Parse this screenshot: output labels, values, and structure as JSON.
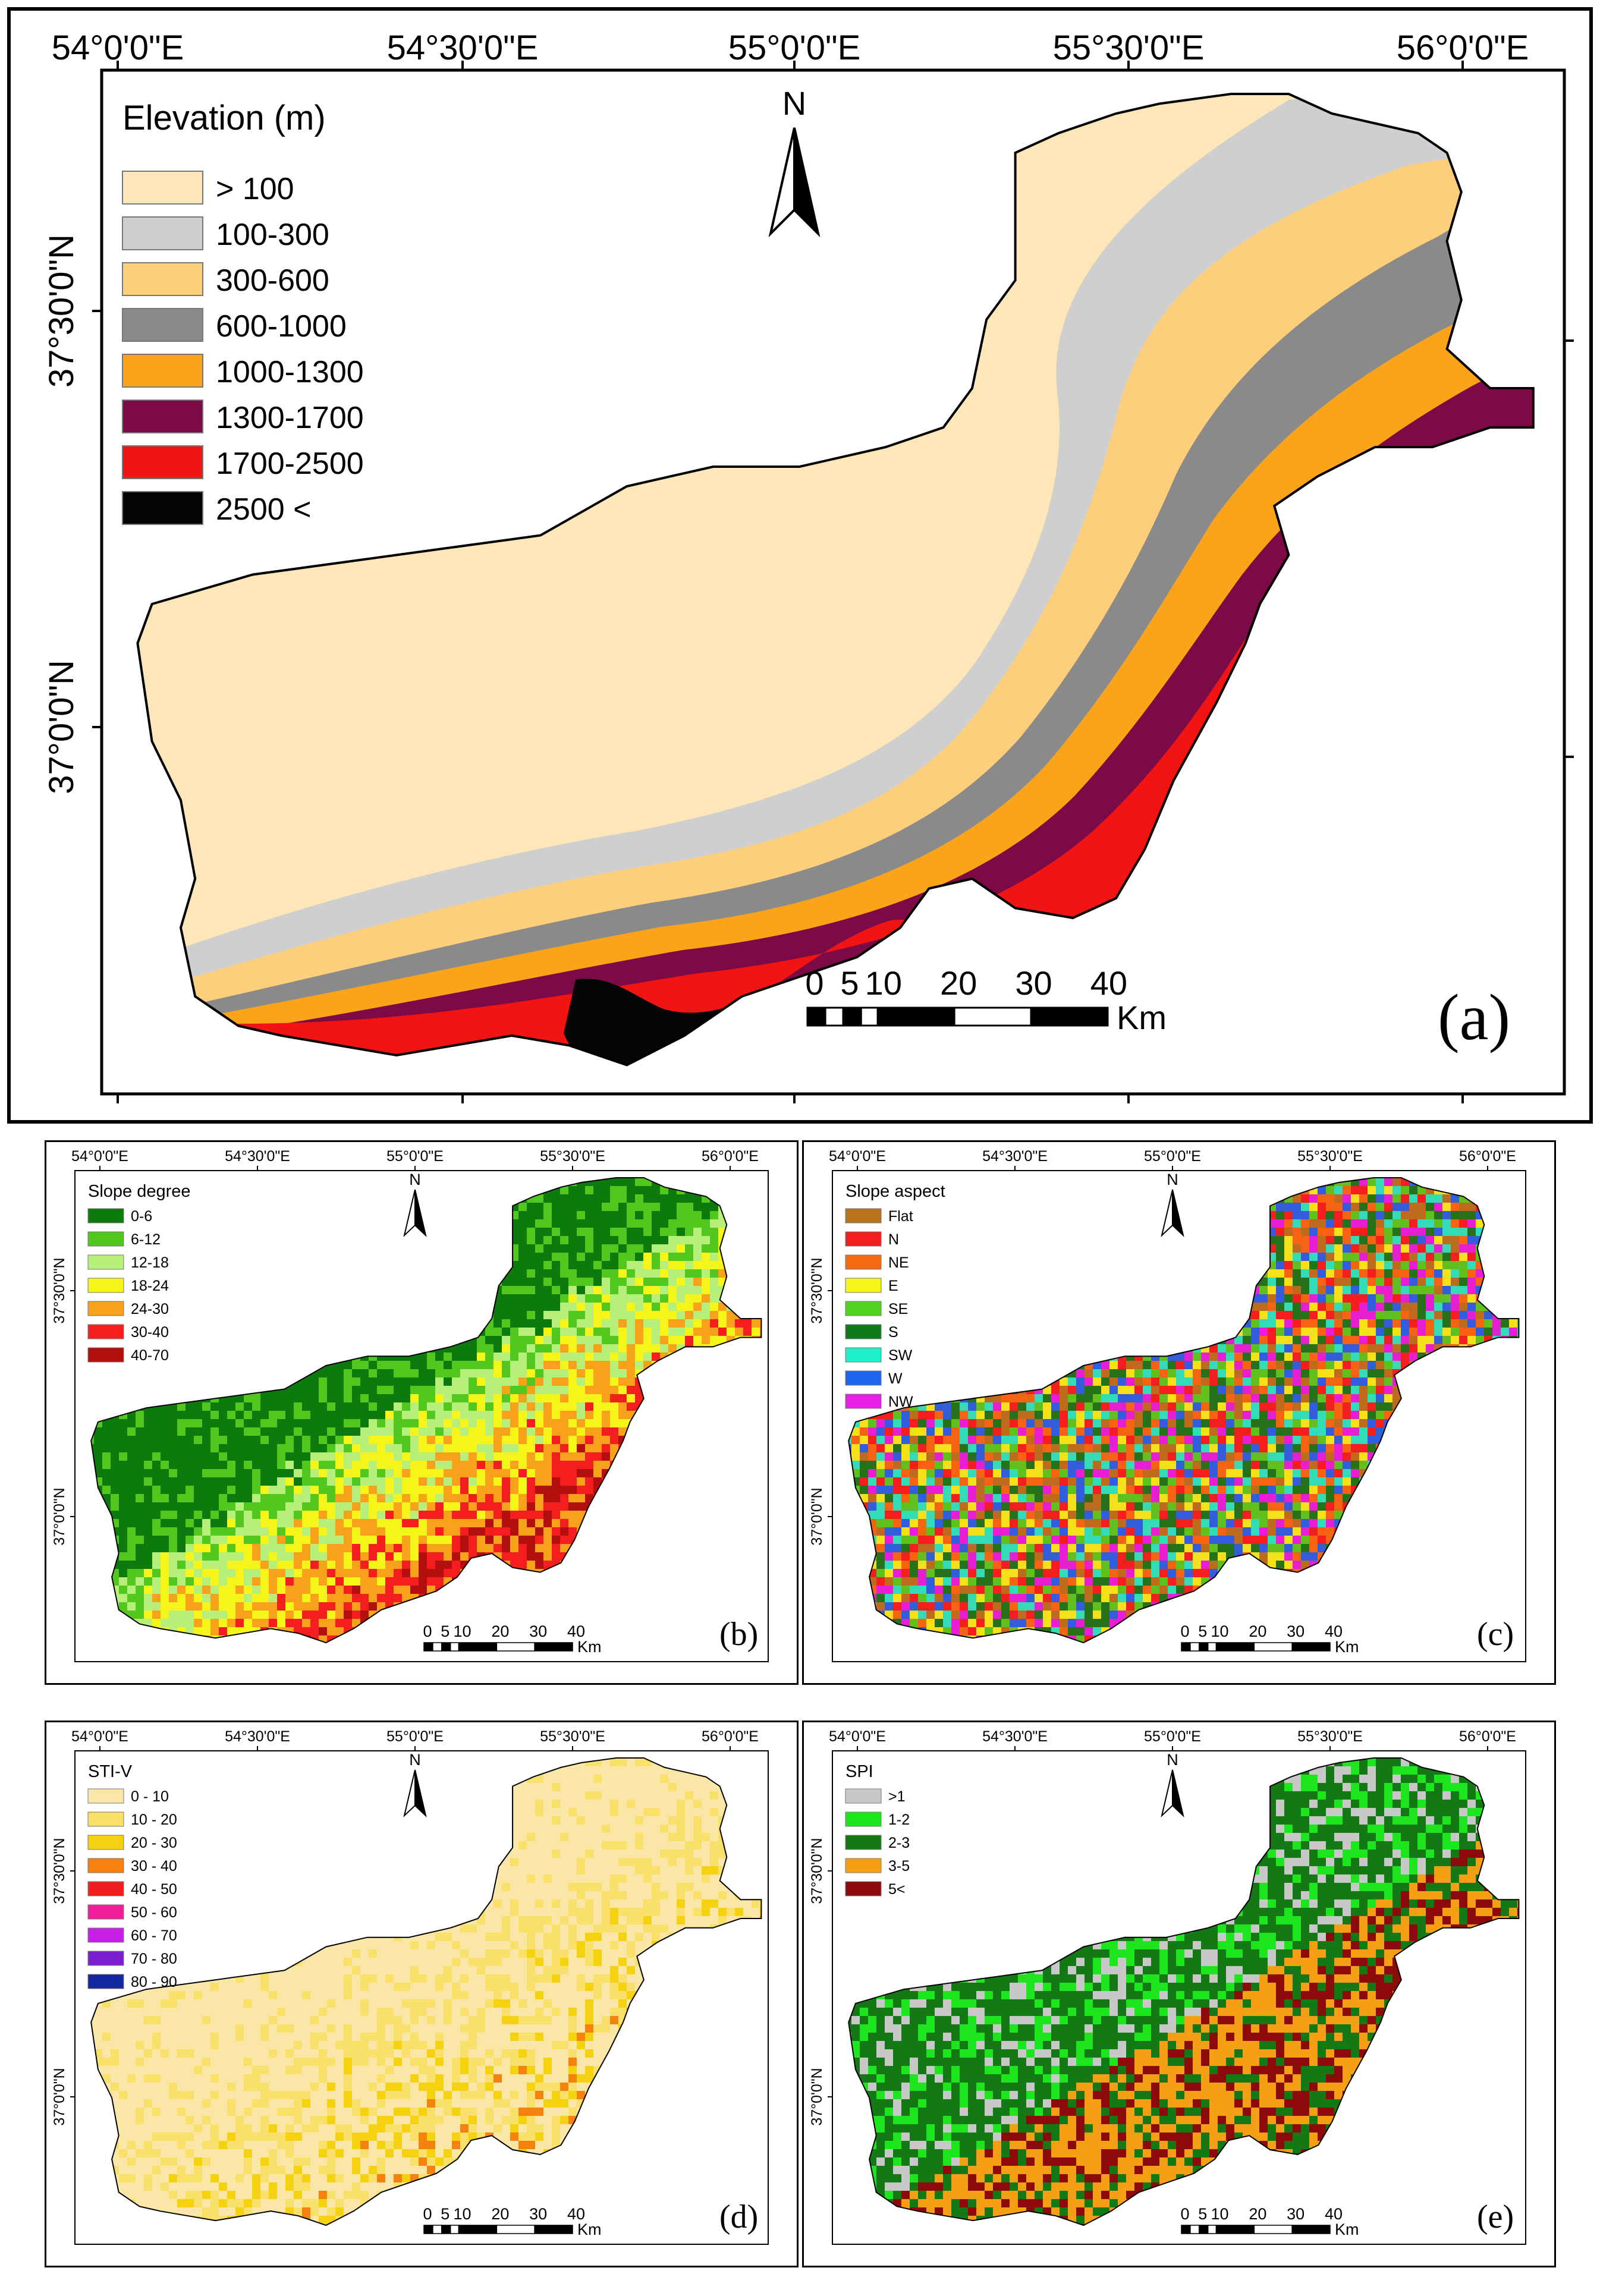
{
  "panels": {
    "a": {
      "label": "(a)",
      "legend_title": "Elevation (m)",
      "classes": [
        {
          "label": "> 100",
          "color": "#fde6b8"
        },
        {
          "label": "100-300",
          "color": "#cfcfcf"
        },
        {
          "label": "300-600",
          "color": "#fdcf7c"
        },
        {
          "label": "600-1000",
          "color": "#8a8a8a"
        },
        {
          "label": "1000-1300",
          "color": "#fba41a"
        },
        {
          "label": "1300-1700",
          "color": "#7b0a46"
        },
        {
          "label": "1700-2500",
          "color": "#f21313"
        },
        {
          "label": "2500 <",
          "color": "#050505"
        }
      ],
      "x_ticks": [
        "54°0'0\"E",
        "54°30'0\"E",
        "55°0'0\"E",
        "55°30'0\"E",
        "56°0'0\"E"
      ],
      "y_ticks": [
        "37°30'0\"N",
        "37°0'0\"N"
      ]
    },
    "b": {
      "label": "(b)",
      "legend_title": "Slope degree",
      "classes": [
        {
          "label": "0-6",
          "color": "#0c7a0c"
        },
        {
          "label": "6-12",
          "color": "#52c81e"
        },
        {
          "label": "12-18",
          "color": "#b6f07a"
        },
        {
          "label": "18-24",
          "color": "#f5f51a"
        },
        {
          "label": "24-30",
          "color": "#f7a21a"
        },
        {
          "label": "30-40",
          "color": "#f51e1e"
        },
        {
          "label": "40-70",
          "color": "#b30f0f"
        }
      ],
      "x_ticks": [
        "54°0'0\"E",
        "54°30'0\"E",
        "55°0'0\"E",
        "55°30'0\"E",
        "56°0'0\"E"
      ],
      "y_ticks": [
        "37°30'0\"N",
        "37°0'0\"N"
      ]
    },
    "c": {
      "label": "(c)",
      "legend_title": "Slope aspect",
      "classes": [
        {
          "label": "Flat",
          "color": "#b8731e"
        },
        {
          "label": "N",
          "color": "#f51e1e"
        },
        {
          "label": "NE",
          "color": "#f56a12"
        },
        {
          "label": "E",
          "color": "#f5f51a"
        },
        {
          "label": "SE",
          "color": "#52d21e"
        },
        {
          "label": "S",
          "color": "#0f7a1a"
        },
        {
          "label": "SW",
          "color": "#1ef0c8"
        },
        {
          "label": "W",
          "color": "#1e64f0"
        },
        {
          "label": "NW",
          "color": "#e61ee6"
        }
      ],
      "x_ticks": [
        "54°0'0\"E",
        "54°30'0\"E",
        "55°0'0\"E",
        "55°30'0\"E",
        "56°0'0\"E"
      ],
      "y_ticks": [
        "37°30'0\"N",
        "37°0'0\"N"
      ]
    },
    "d": {
      "label": "(d)",
      "legend_title": "STI-V",
      "classes": [
        {
          "label": "0 - 10",
          "color": "#fae6a6"
        },
        {
          "label": "10 - 20",
          "color": "#f8e06a"
        },
        {
          "label": "20 - 30",
          "color": "#f5d20f"
        },
        {
          "label": "30 - 40",
          "color": "#f5820f"
        },
        {
          "label": "40 - 50",
          "color": "#f01e1e"
        },
        {
          "label": "50 - 60",
          "color": "#f01e9a"
        },
        {
          "label": "60 - 70",
          "color": "#c81ee6"
        },
        {
          "label": "70 - 80",
          "color": "#7a1ed2"
        },
        {
          "label": "80 - 90",
          "color": "#1428a0"
        }
      ],
      "x_ticks": [
        "54°0'0\"E",
        "54°30'0\"E",
        "55°0'0\"E",
        "55°30'0\"E",
        "56°0'0\"E"
      ],
      "y_ticks": [
        "37°30'0\"N",
        "37°0'0\"N"
      ]
    },
    "e": {
      "label": "(e)",
      "legend_title": "SPI",
      "classes": [
        {
          "label": ">1",
          "color": "#c8c8c8"
        },
        {
          "label": "1-2",
          "color": "#1ee61e"
        },
        {
          "label": "2-3",
          "color": "#147814"
        },
        {
          "label": "3-5",
          "color": "#f5a014"
        },
        {
          "label": "5<",
          "color": "#8c0a0a"
        }
      ],
      "x_ticks": [
        "54°0'0\"E",
        "54°30'0\"E",
        "55°0'0\"E",
        "55°30'0\"E",
        "56°0'0\"E"
      ],
      "y_ticks": [
        "37°30'0\"N",
        "37°0'0\"N"
      ]
    }
  },
  "north_arrow": "N",
  "scale_bar": {
    "labels": [
      "0",
      "5",
      "10",
      "20",
      "30",
      "40"
    ],
    "unit": "Km"
  }
}
